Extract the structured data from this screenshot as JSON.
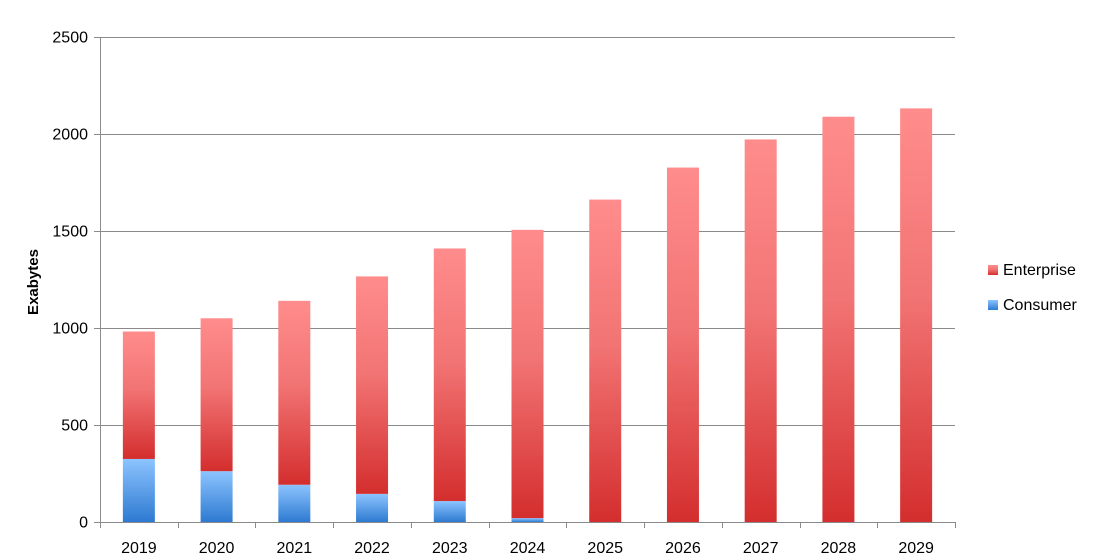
{
  "chart_data": {
    "type": "bar",
    "stacked": true,
    "title": "",
    "xlabel": "",
    "ylabel": "Exabytes",
    "ylim": [
      0,
      2500
    ],
    "yticks": [
      0,
      500,
      1000,
      1500,
      2000,
      2500
    ],
    "grid": true,
    "legend_position": "right",
    "categories": [
      "2019",
      "2020",
      "2021",
      "2022",
      "2023",
      "2024",
      "2025",
      "2026",
      "2027",
      "2028",
      "2029"
    ],
    "series": [
      {
        "name": "Consumer",
        "color": "#5b9bd5",
        "values": [
          325,
          262,
          192,
          145,
          108,
          20,
          0,
          0,
          0,
          0,
          0
        ]
      },
      {
        "name": "Enterprise",
        "color": "#e84a4a",
        "values": [
          657,
          788,
          948,
          1121,
          1302,
          1486,
          1662,
          1827,
          1972,
          2089,
          2132
        ]
      }
    ],
    "legend": [
      "Enterprise",
      "Consumer"
    ]
  }
}
